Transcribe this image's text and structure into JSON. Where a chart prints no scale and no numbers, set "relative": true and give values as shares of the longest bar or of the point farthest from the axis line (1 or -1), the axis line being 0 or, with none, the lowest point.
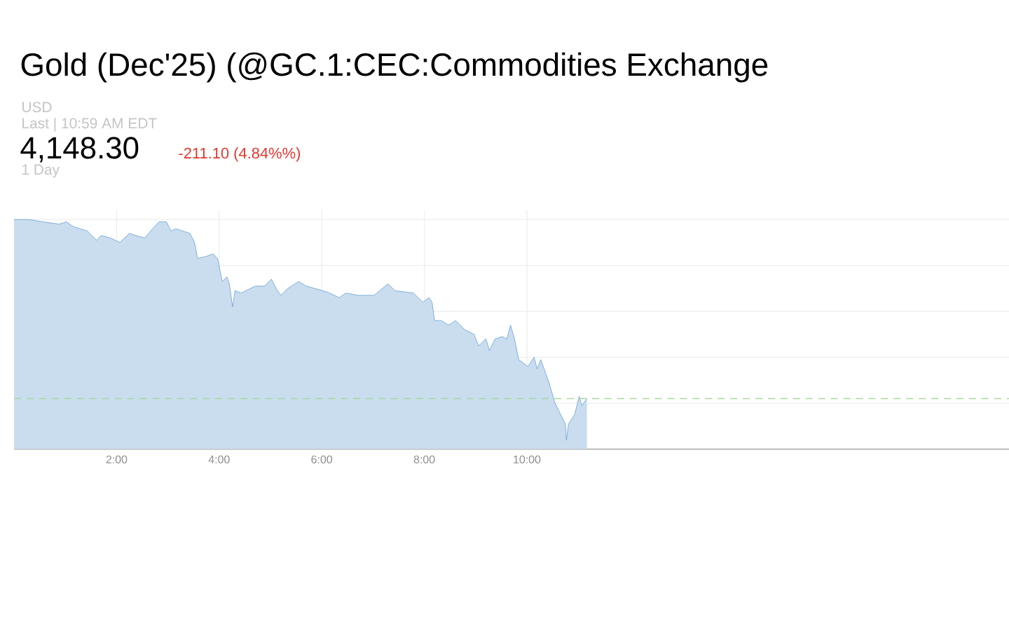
{
  "chart_data": {
    "type": "area",
    "title": "Gold (Dec'25) (@GC.1:CEC:Commodities Exchange",
    "annotations": [
      "USD",
      "Last | 10:59 AM EDT",
      "4,148.30",
      "-211.10 (4.84%%)",
      "1 Day"
    ],
    "relative": true,
    "color": "#3f87c7",
    "x": [
      0,
      0.29,
      0.56,
      0.88,
      1.02,
      1.15,
      1.43,
      1.61,
      1.7,
      1.88,
      2.06,
      2.25,
      2.38,
      2.55,
      2.7,
      2.83,
      2.97,
      3.06,
      3.15,
      3.29,
      3.43,
      3.52,
      3.58,
      3.75,
      3.88,
      3.97,
      4.06,
      4.15,
      4.2,
      4.26,
      4.31,
      4.43,
      4.7,
      4.88,
      5.02,
      5.11,
      5.2,
      5.34,
      5.55,
      5.7,
      6.02,
      6.15,
      6.34,
      6.47,
      6.7,
      7.02,
      7.29,
      7.43,
      7.79,
      7.97,
      8.09,
      8.15,
      8.2,
      8.33,
      8.47,
      8.61,
      8.79,
      8.97,
      9.06,
      9.2,
      9.27,
      9.38,
      9.52,
      9.61,
      9.68,
      9.76,
      9.84,
      10.02,
      10.14,
      10.2,
      10.27,
      10.43,
      10.55,
      10.66,
      10.75,
      10.77,
      10.81,
      10.93,
      11.02,
      11.07,
      11.17
    ],
    "values": [
      1.0,
      1.0,
      0.99,
      0.98,
      0.99,
      0.97,
      0.95,
      0.91,
      0.93,
      0.92,
      0.9,
      0.94,
      0.93,
      0.92,
      0.96,
      0.99,
      0.99,
      0.95,
      0.96,
      0.95,
      0.94,
      0.9,
      0.83,
      0.84,
      0.85,
      0.83,
      0.73,
      0.75,
      0.72,
      0.62,
      0.69,
      0.68,
      0.71,
      0.71,
      0.74,
      0.7,
      0.67,
      0.7,
      0.73,
      0.71,
      0.69,
      0.68,
      0.66,
      0.68,
      0.67,
      0.67,
      0.72,
      0.69,
      0.68,
      0.64,
      0.66,
      0.64,
      0.56,
      0.56,
      0.54,
      0.56,
      0.52,
      0.5,
      0.45,
      0.48,
      0.43,
      0.48,
      0.49,
      0.48,
      0.54,
      0.48,
      0.39,
      0.36,
      0.4,
      0.35,
      0.39,
      0.29,
      0.2,
      0.15,
      0.11,
      0.04,
      0.11,
      0.15,
      0.23,
      0.19,
      0.22
    ],
    "xlim": [
      0,
      19.4
    ],
    "xticks": [
      {
        "value": 2,
        "label": "2:00"
      },
      {
        "value": 4,
        "label": "4:00"
      },
      {
        "value": 6,
        "label": "6:00"
      },
      {
        "value": 8,
        "label": "8:00"
      },
      {
        "value": 10,
        "label": "10:00"
      }
    ],
    "grid": true,
    "ref_lines": [
      {
        "axis": "y",
        "value": 0.22,
        "color": "#a8d89a",
        "line_style": "dashed"
      }
    ]
  }
}
